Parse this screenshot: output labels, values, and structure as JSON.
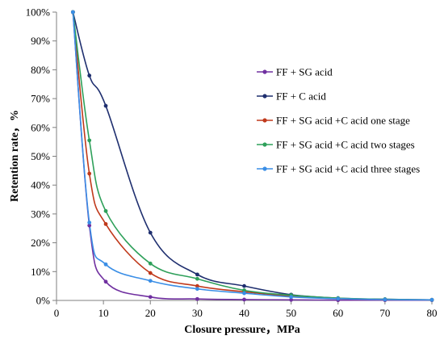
{
  "chart_data": {
    "type": "line",
    "xlabel": "Closure pressure，MPa",
    "ylabel": "Retention rate，%",
    "xlim": [
      0,
      80
    ],
    "ylim": [
      0,
      100
    ],
    "xticks": [
      "0",
      "10",
      "20",
      "30",
      "40",
      "50",
      "60",
      "70",
      "80"
    ],
    "yticks": [
      "0%",
      "10%",
      "20%",
      "30%",
      "40%",
      "50%",
      "60%",
      "70%",
      "80%",
      "90%",
      "100%"
    ],
    "grid": false,
    "legend_position": "right",
    "series": [
      {
        "name": "FF + SG acid",
        "color": "#7030a0",
        "points": [
          [
            3.5,
            100
          ],
          [
            7,
            26
          ],
          [
            10.5,
            6.5
          ],
          [
            20,
            1.2
          ],
          [
            30,
            0.5
          ],
          [
            40,
            0.3
          ],
          [
            50,
            0.2
          ],
          [
            60,
            0.1
          ],
          [
            70,
            0.1
          ],
          [
            80,
            0.1
          ]
        ]
      },
      {
        "name": "FF + C acid",
        "color": "#1f2f6f",
        "points": [
          [
            3.5,
            100
          ],
          [
            7,
            78
          ],
          [
            10.5,
            67.5
          ],
          [
            20,
            23.5
          ],
          [
            30,
            9
          ],
          [
            40,
            5
          ],
          [
            50,
            2
          ],
          [
            60,
            0.8
          ],
          [
            70,
            0.4
          ],
          [
            80,
            0.2
          ]
        ]
      },
      {
        "name": "FF + SG acid +C acid one stage",
        "color": "#c0391b",
        "points": [
          [
            3.5,
            100
          ],
          [
            7,
            44
          ],
          [
            10.5,
            26.5
          ],
          [
            20,
            9.5
          ],
          [
            30,
            5
          ],
          [
            40,
            3
          ],
          [
            50,
            1.5
          ],
          [
            60,
            0.6
          ],
          [
            70,
            0.3
          ],
          [
            80,
            0.2
          ]
        ]
      },
      {
        "name": "FF + SG acid +C acid two stages",
        "color": "#2ea05a",
        "points": [
          [
            3.5,
            100
          ],
          [
            7,
            55.5
          ],
          [
            10.5,
            31
          ],
          [
            20,
            12.8
          ],
          [
            30,
            7.5
          ],
          [
            40,
            3.5
          ],
          [
            50,
            1.8
          ],
          [
            60,
            0.8
          ],
          [
            70,
            0.4
          ],
          [
            80,
            0.2
          ]
        ]
      },
      {
        "name": "FF + SG acid +C acid three stages",
        "color": "#3a8ee6",
        "points": [
          [
            3.5,
            100
          ],
          [
            7,
            27
          ],
          [
            10.5,
            12.5
          ],
          [
            20,
            6.8
          ],
          [
            30,
            4
          ],
          [
            40,
            2.5
          ],
          [
            50,
            1.2
          ],
          [
            60,
            0.6
          ],
          [
            70,
            0.3
          ],
          [
            80,
            0.2
          ]
        ]
      }
    ]
  }
}
